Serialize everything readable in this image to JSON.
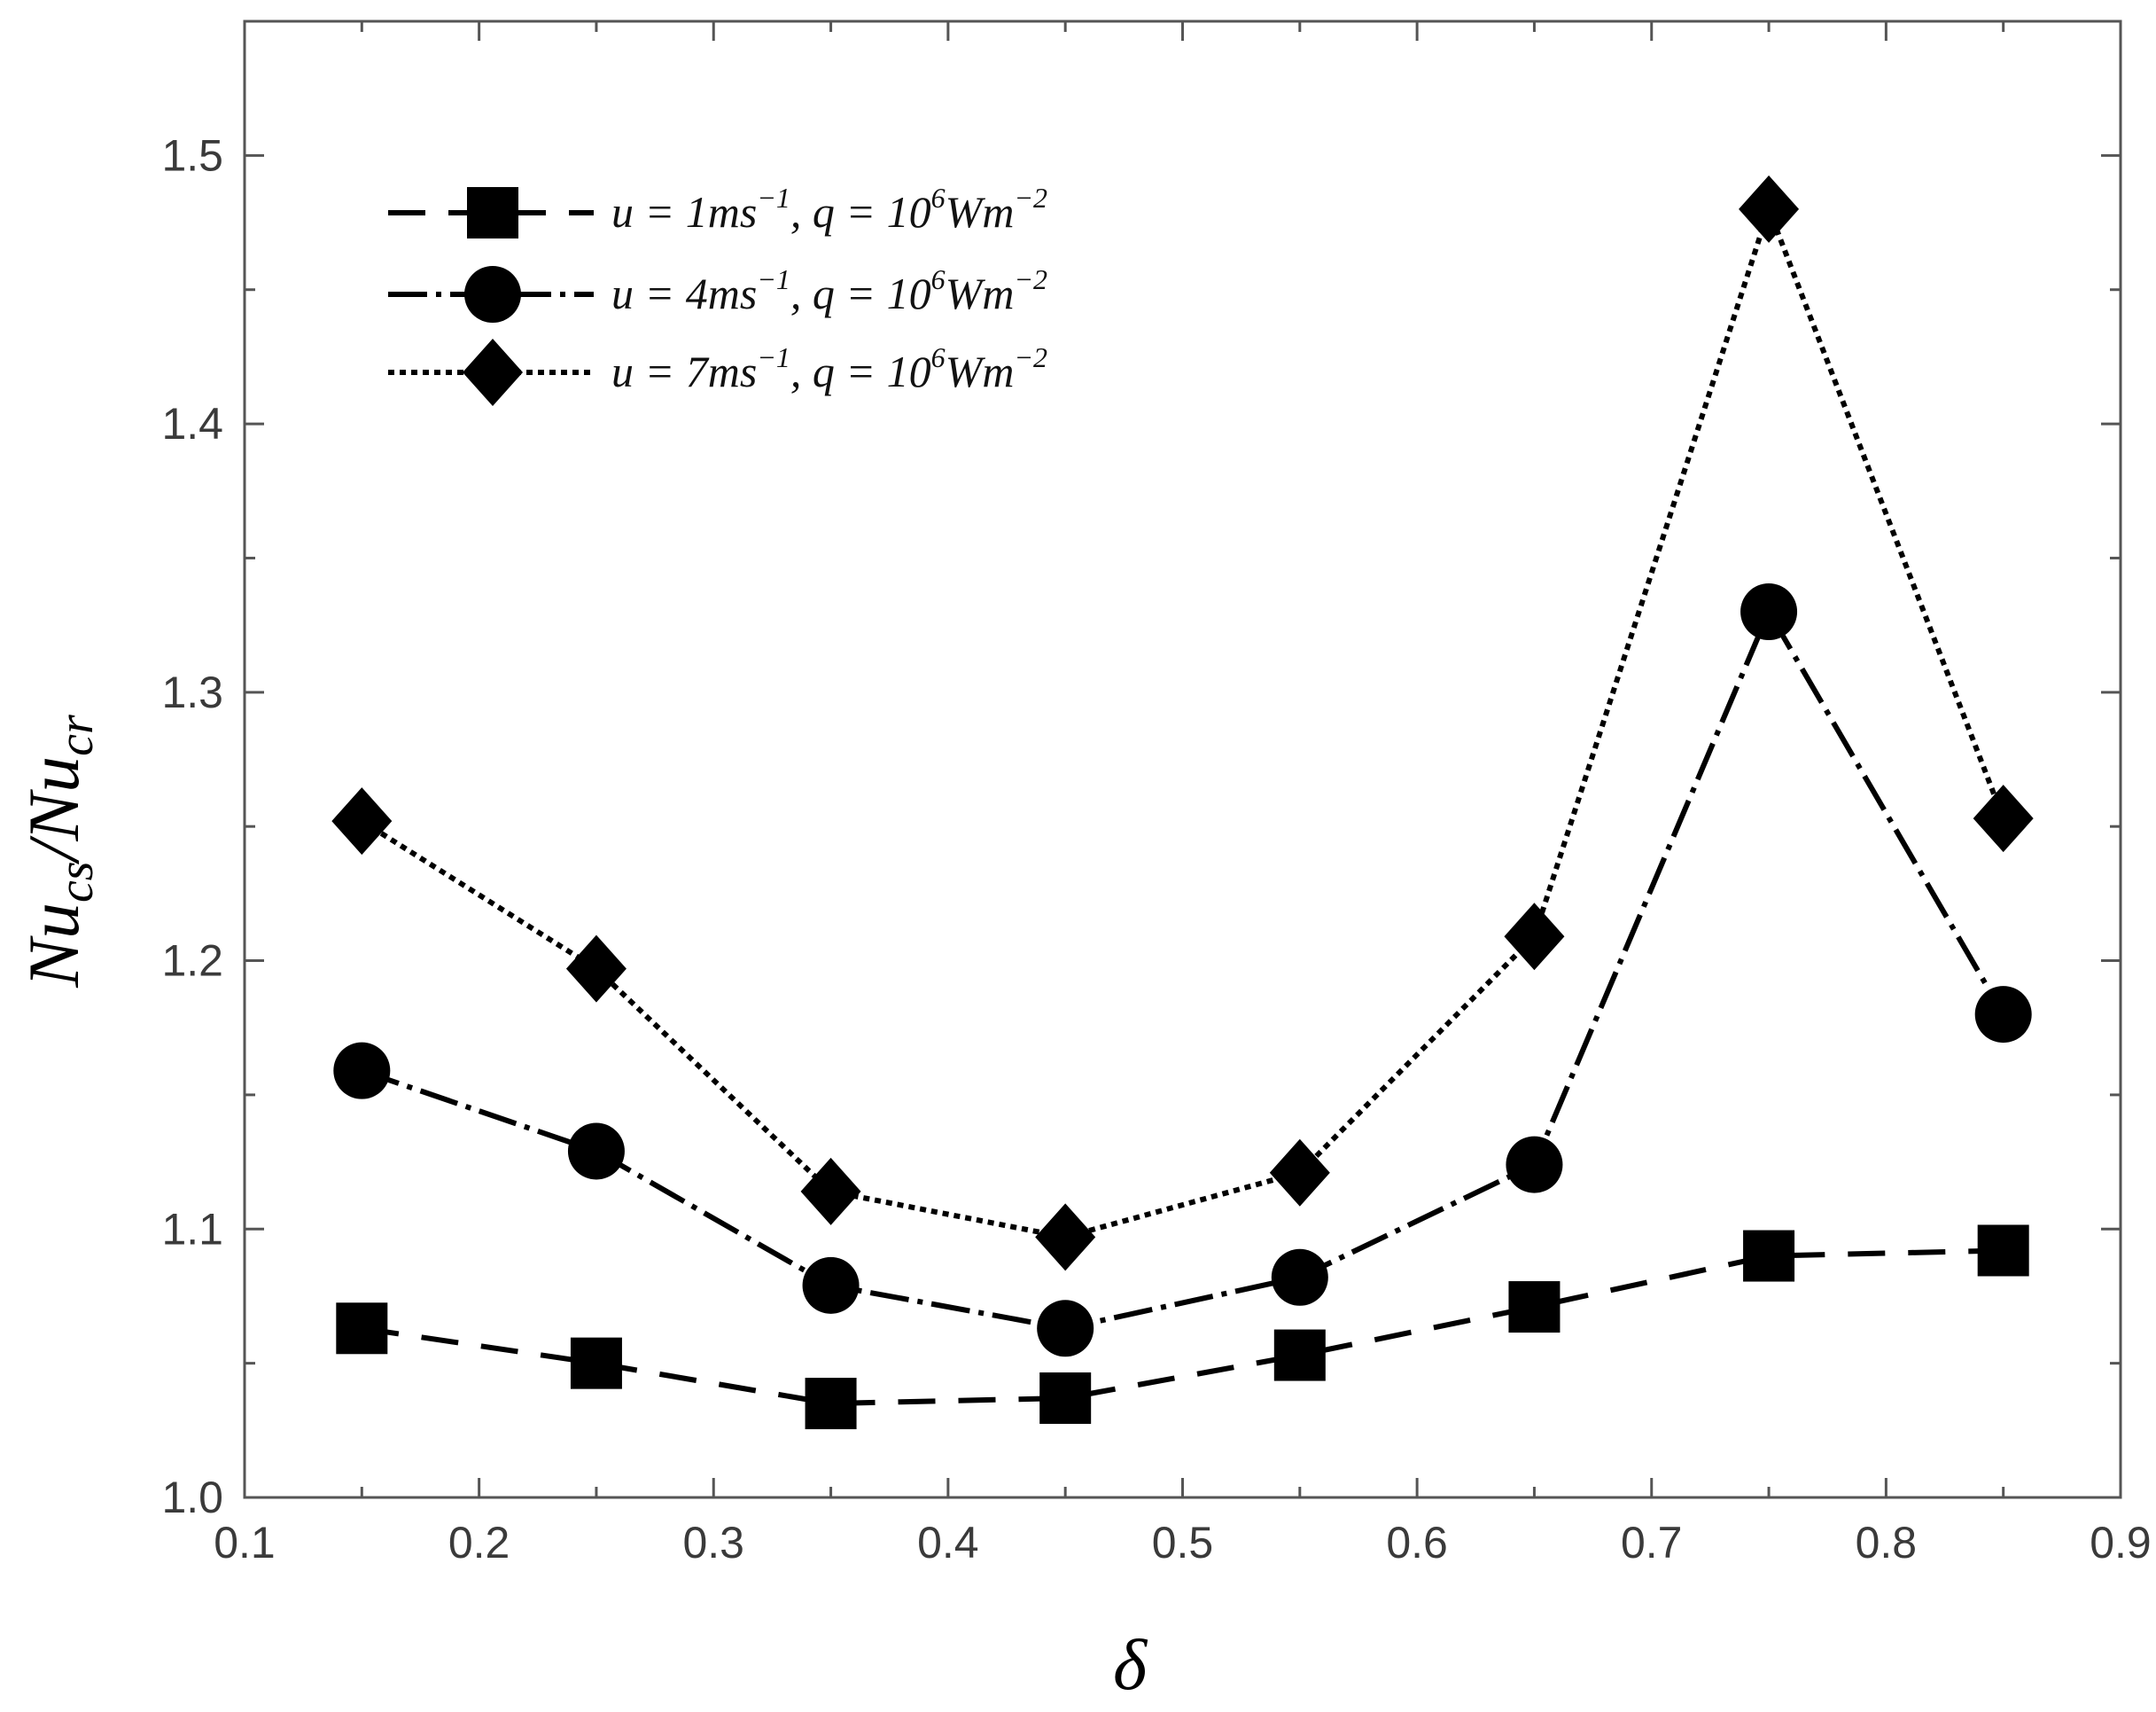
{
  "chart_data": {
    "type": "line",
    "xlabel": "δ",
    "ylabel_main": "Nu",
    "ylabel_sub1": "cs",
    "ylabel_mid": "/Nu",
    "ylabel_sub2": "cr",
    "xlim": [
      0.1,
      0.9
    ],
    "ylim": [
      1.0,
      1.55
    ],
    "xticks": [
      0.1,
      0.2,
      0.3,
      0.4,
      0.5,
      0.6,
      0.7,
      0.8,
      0.9
    ],
    "yticks": [
      1.0,
      1.1,
      1.2,
      1.3,
      1.4,
      1.5
    ],
    "xtick_labels": [
      "0.1",
      "0.2",
      "0.3",
      "0.4",
      "0.5",
      "0.6",
      "0.7",
      "0.8",
      "0.9"
    ],
    "ytick_labels": [
      "1.0",
      "1.1",
      "1.2",
      "1.3",
      "1.4",
      "1.5"
    ],
    "grid": false,
    "legend_position": "top-left",
    "x": [
      0.15,
      0.25,
      0.35,
      0.45,
      0.55,
      0.65,
      0.75,
      0.85
    ],
    "series": [
      {
        "name": "u = 1ms⁻¹, q = 10⁶Wm⁻²",
        "legend": {
          "u": "1",
          "q": "10",
          "qexp": "6"
        },
        "marker": "square",
        "dash": "long",
        "values": [
          1.063,
          1.05,
          1.035,
          1.037,
          1.053,
          1.071,
          1.09,
          1.092
        ]
      },
      {
        "name": "u = 4ms⁻¹, q = 10⁶Wm⁻²",
        "legend": {
          "u": "4",
          "q": "10",
          "qexp": "6"
        },
        "marker": "circle",
        "dash": "dashdot",
        "values": [
          1.159,
          1.129,
          1.079,
          1.063,
          1.082,
          1.124,
          1.33,
          1.18
        ]
      },
      {
        "name": "u = 7ms⁻¹, q = 10⁶Wm⁻²",
        "legend": {
          "u": "7",
          "q": "10",
          "qexp": "6"
        },
        "marker": "diamond",
        "dash": "dotted",
        "values": [
          1.252,
          1.197,
          1.114,
          1.097,
          1.121,
          1.209,
          1.48,
          1.253
        ]
      }
    ],
    "colors": {
      "line": "#000000",
      "frame": "#555555"
    }
  }
}
